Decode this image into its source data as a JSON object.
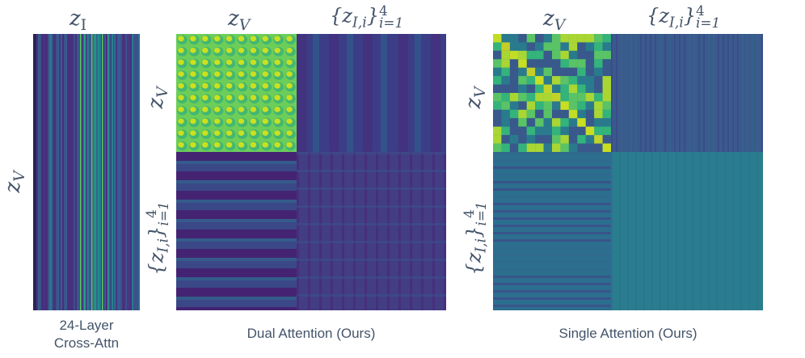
{
  "colors": {
    "label": "#44546a",
    "viridis_dark": "#440154",
    "viridis_blue": "#3b528b",
    "viridis_teal": "#21918c",
    "viridis_green": "#5ec962",
    "viridis_yellow": "#fde725"
  },
  "panels": {
    "cross": {
      "top_label_base": "z",
      "top_label_sub": "I",
      "side_label_base": "z",
      "side_label_sub": "V",
      "caption_line1": "24-Layer",
      "caption_line2": "Cross-Attn"
    },
    "dual": {
      "col1_label_base": "z",
      "col1_label_sub": "V",
      "col2_label_base": "{z",
      "col2_label_sub": "I,i",
      "col2_label_close": "}",
      "col2_label_sup": "4",
      "col2_label_range": "i=1",
      "row1_label_base": "z",
      "row1_label_sub": "V",
      "row2_label_base": "{z",
      "row2_label_sub": "I,i",
      "row2_label_close": "}",
      "row2_label_sup": "4",
      "row2_label_range": "i=1",
      "caption": "Dual Attention (Ours)"
    },
    "single": {
      "col1_label_base": "z",
      "col1_label_sub": "V",
      "col2_label_base": "{z",
      "col2_label_sub": "I,i",
      "col2_label_close": "}",
      "col2_label_sup": "4",
      "col2_label_range": "i=1",
      "row1_label_base": "z",
      "row1_label_sub": "V",
      "row2_label_base": "{z",
      "row2_label_sub": "I,i",
      "row2_label_close": "}",
      "row2_label_sup": "4",
      "row2_label_range": "i=1",
      "caption": "Single Attention (Ours)"
    }
  }
}
